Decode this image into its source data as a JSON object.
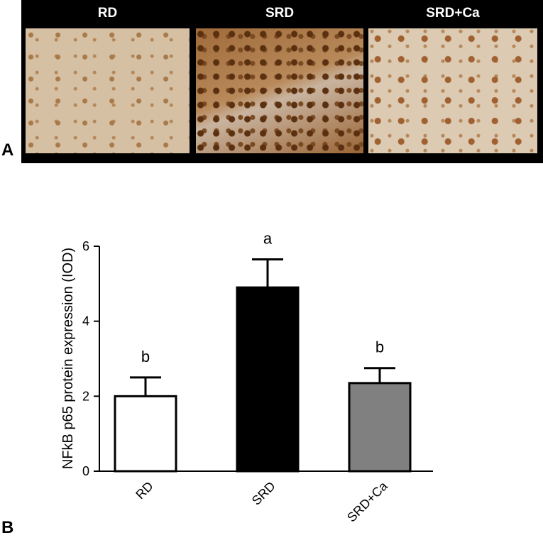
{
  "panel_a": {
    "label": "A",
    "images": [
      "RD",
      "SRD",
      "SRD+Ca"
    ]
  },
  "chart_data": {
    "type": "bar",
    "label": "B",
    "y_label": "NFkB p65 protein expression (IOD)",
    "categories": [
      "RD",
      "SRD",
      "SRD+Ca"
    ],
    "values": [
      2.0,
      4.9,
      2.35
    ],
    "errors": [
      0.5,
      0.75,
      0.4
    ],
    "colors": [
      "#ffffff",
      "#000000",
      "#808080"
    ],
    "annotations": [
      "b",
      "a",
      "b"
    ],
    "ylim": [
      0,
      6
    ],
    "yticks": [
      0,
      2,
      4,
      6
    ]
  }
}
